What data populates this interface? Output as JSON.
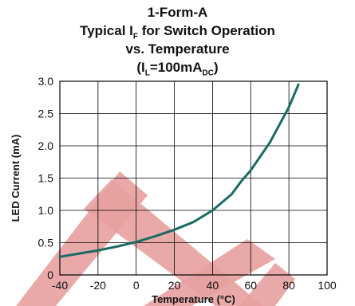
{
  "chart_data": {
    "type": "line",
    "title_lines": [
      "1-Form-A",
      "Typical I",
      "F",
      " for Switch Operation",
      "vs. Temperature",
      "(I",
      "L",
      "=100mA",
      "DC",
      ")"
    ],
    "title": {
      "line1": "1-Form-A",
      "line2_pre": "Typical I",
      "line2_sub": "F",
      "line2_post": " for Switch Operation",
      "line3": "vs. Temperature",
      "line4_pre": "(I",
      "line4_sub1": "L",
      "line4_mid": "=100mA",
      "line4_sub2": "DC",
      "line4_post": ")"
    },
    "xlabel": "Temperature (°C)",
    "ylabel": "LED Current (mA)",
    "xlim": [
      -40,
      100
    ],
    "ylim": [
      0,
      3.0
    ],
    "xticks": [
      -40,
      -20,
      0,
      20,
      40,
      60,
      80,
      100
    ],
    "xtick_labels": [
      "-40",
      "-20",
      "0",
      "20",
      "40",
      "60",
      "80",
      "100"
    ],
    "yticks": [
      0,
      0.5,
      1.0,
      1.5,
      2.0,
      2.5,
      3.0
    ],
    "ytick_labels": [
      "0",
      "0.5",
      "1.0",
      "1.5",
      "2.0",
      "2.5",
      "3.0"
    ],
    "grid": true,
    "series": [
      {
        "color": "#1a6b63",
        "x": [
          -40,
          -30,
          -20,
          -10,
          0,
          10,
          20,
          30,
          40,
          50,
          55,
          60,
          70,
          80,
          85
        ],
        "y": [
          0.28,
          0.33,
          0.38,
          0.44,
          0.51,
          0.6,
          0.7,
          0.82,
          1.0,
          1.25,
          1.45,
          1.62,
          2.05,
          2.6,
          2.95
        ]
      }
    ]
  },
  "watermark": {
    "color": "#e8a0a0"
  }
}
